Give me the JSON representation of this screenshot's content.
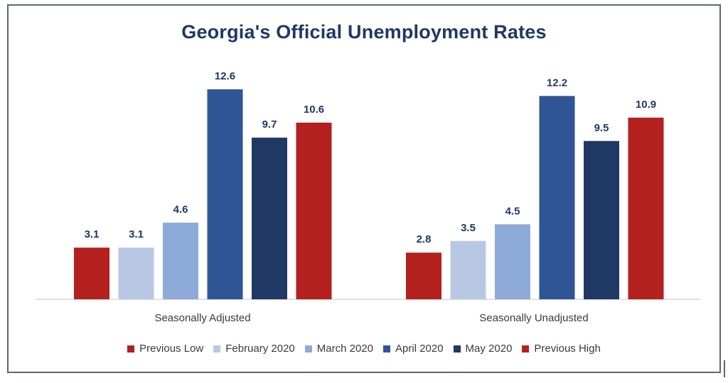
{
  "chart_data": {
    "type": "bar",
    "title": "Georgia's Official Unemployment Rates",
    "categories": [
      "Seasonally Adjusted",
      "Seasonally Unadjusted"
    ],
    "series": [
      {
        "name": "Previous Low",
        "color": "#b3201e",
        "values": [
          3.1,
          2.8
        ]
      },
      {
        "name": "February 2020",
        "color": "#b8c8e4",
        "values": [
          3.1,
          3.5
        ]
      },
      {
        "name": "March 2020",
        "color": "#8eaad9",
        "values": [
          4.6,
          4.5
        ]
      },
      {
        "name": "April 2020",
        "color": "#2f5597",
        "values": [
          12.6,
          12.2
        ]
      },
      {
        "name": "May 2020",
        "color": "#203864",
        "values": [
          9.7,
          9.5
        ]
      },
      {
        "name": "Previous High",
        "color": "#b3201e",
        "values": [
          10.6,
          10.9
        ]
      }
    ],
    "ylim": [
      0,
      14
    ],
    "grid": false,
    "legend_position": "bottom",
    "data_label_color": "#1f3864"
  }
}
